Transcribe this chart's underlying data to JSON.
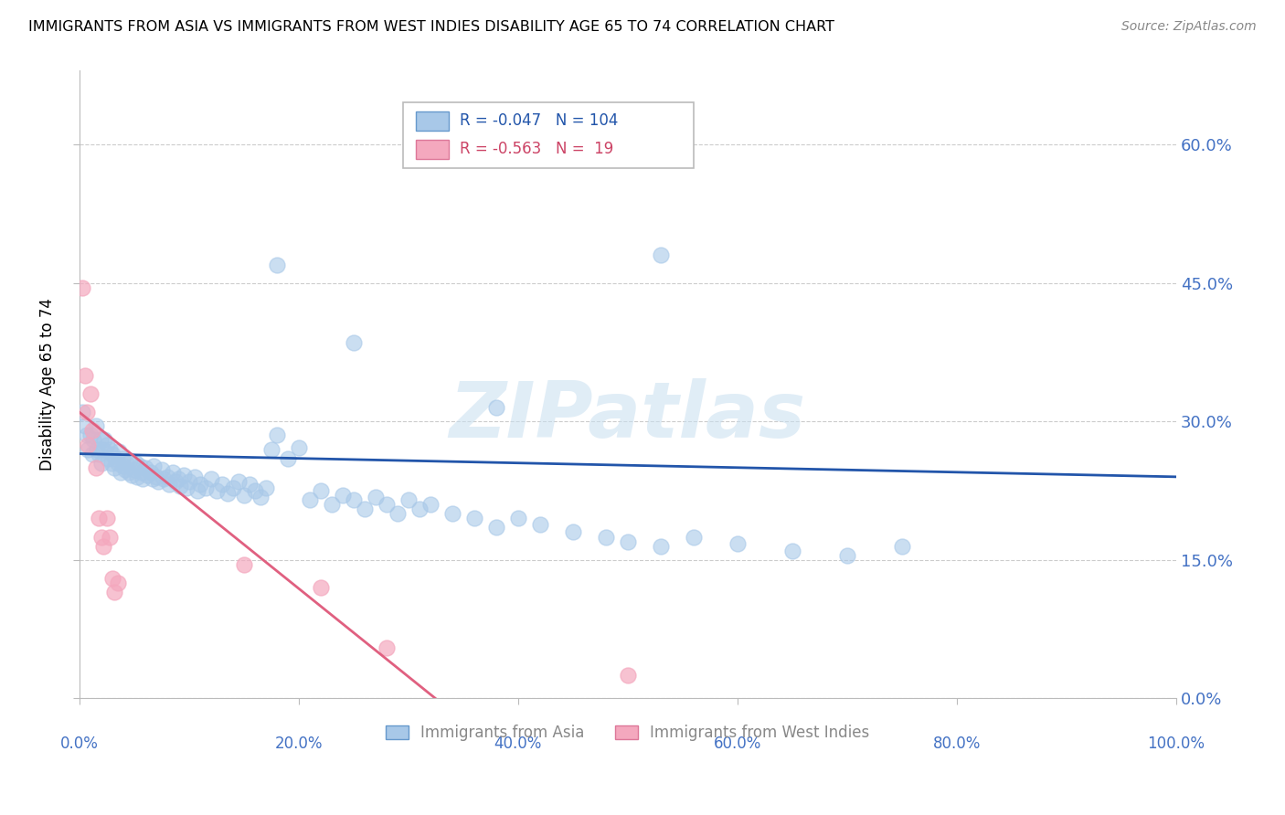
{
  "title": "IMMIGRANTS FROM ASIA VS IMMIGRANTS FROM WEST INDIES DISABILITY AGE 65 TO 74 CORRELATION CHART",
  "source": "Source: ZipAtlas.com",
  "ylabel": "Disability Age 65 to 74",
  "xlim": [
    0.0,
    1.0
  ],
  "ylim": [
    0.0,
    0.68
  ],
  "yticks": [
    0.0,
    0.15,
    0.3,
    0.45,
    0.6
  ],
  "ytick_labels": [
    "0.0%",
    "15.0%",
    "30.0%",
    "45.0%",
    "60.0%"
  ],
  "xticks": [
    0.0,
    0.2,
    0.4,
    0.6,
    0.8,
    1.0
  ],
  "xtick_labels": [
    "0.0%",
    "20.0%",
    "40.0%",
    "60.0%",
    "80.0%",
    "100.0%"
  ],
  "legend_label_asia": "Immigrants from Asia",
  "legend_label_wi": "Immigrants from West Indies",
  "R_asia": -0.047,
  "N_asia": 104,
  "R_wi": -0.563,
  "N_wi": 19,
  "blue_color": "#a8c8e8",
  "pink_color": "#f4a8be",
  "blue_line_color": "#2255aa",
  "pink_line_color": "#e06080",
  "watermark": "ZIPatlas",
  "asia_x": [
    0.003,
    0.005,
    0.007,
    0.008,
    0.01,
    0.012,
    0.013,
    0.015,
    0.016,
    0.018,
    0.019,
    0.02,
    0.022,
    0.023,
    0.025,
    0.026,
    0.028,
    0.029,
    0.03,
    0.032,
    0.033,
    0.035,
    0.036,
    0.038,
    0.039,
    0.04,
    0.042,
    0.043,
    0.045,
    0.046,
    0.048,
    0.05,
    0.052,
    0.053,
    0.055,
    0.057,
    0.058,
    0.06,
    0.062,
    0.065,
    0.067,
    0.068,
    0.07,
    0.072,
    0.075,
    0.077,
    0.08,
    0.082,
    0.085,
    0.088,
    0.09,
    0.092,
    0.095,
    0.098,
    0.1,
    0.105,
    0.108,
    0.11,
    0.115,
    0.12,
    0.125,
    0.13,
    0.135,
    0.14,
    0.145,
    0.15,
    0.155,
    0.16,
    0.165,
    0.17,
    0.175,
    0.18,
    0.19,
    0.2,
    0.21,
    0.22,
    0.23,
    0.24,
    0.25,
    0.26,
    0.27,
    0.28,
    0.29,
    0.3,
    0.31,
    0.32,
    0.34,
    0.36,
    0.38,
    0.4,
    0.42,
    0.45,
    0.48,
    0.5,
    0.53,
    0.56,
    0.6,
    0.65,
    0.7,
    0.75,
    0.18,
    0.25,
    0.38,
    0.53
  ],
  "asia_y": [
    0.31,
    0.295,
    0.285,
    0.27,
    0.285,
    0.265,
    0.28,
    0.295,
    0.27,
    0.265,
    0.28,
    0.255,
    0.27,
    0.28,
    0.275,
    0.26,
    0.27,
    0.255,
    0.265,
    0.25,
    0.26,
    0.255,
    0.268,
    0.245,
    0.26,
    0.252,
    0.248,
    0.255,
    0.245,
    0.258,
    0.242,
    0.248,
    0.255,
    0.24,
    0.252,
    0.245,
    0.238,
    0.25,
    0.242,
    0.245,
    0.238,
    0.252,
    0.24,
    0.235,
    0.248,
    0.238,
    0.24,
    0.232,
    0.245,
    0.235,
    0.238,
    0.23,
    0.242,
    0.228,
    0.235,
    0.24,
    0.225,
    0.232,
    0.228,
    0.238,
    0.225,
    0.232,
    0.222,
    0.228,
    0.235,
    0.22,
    0.232,
    0.225,
    0.218,
    0.228,
    0.27,
    0.285,
    0.26,
    0.272,
    0.215,
    0.225,
    0.21,
    0.22,
    0.215,
    0.205,
    0.218,
    0.21,
    0.2,
    0.215,
    0.205,
    0.21,
    0.2,
    0.195,
    0.185,
    0.195,
    0.188,
    0.18,
    0.175,
    0.17,
    0.165,
    0.175,
    0.168,
    0.16,
    0.155,
    0.165,
    0.47,
    0.385,
    0.315,
    0.48
  ],
  "wi_x": [
    0.003,
    0.005,
    0.007,
    0.008,
    0.01,
    0.012,
    0.015,
    0.018,
    0.02,
    0.022,
    0.025,
    0.028,
    0.03,
    0.032,
    0.035,
    0.15,
    0.22,
    0.28,
    0.5
  ],
  "wi_y": [
    0.445,
    0.35,
    0.31,
    0.275,
    0.33,
    0.29,
    0.25,
    0.195,
    0.175,
    0.165,
    0.195,
    0.175,
    0.13,
    0.115,
    0.125,
    0.145,
    0.12,
    0.055,
    0.025
  ],
  "blue_trend_x": [
    0.0,
    1.0
  ],
  "blue_trend_y": [
    0.265,
    0.24
  ],
  "pink_trend_x": [
    0.0,
    0.335
  ],
  "pink_trend_y": [
    0.31,
    -0.01
  ]
}
